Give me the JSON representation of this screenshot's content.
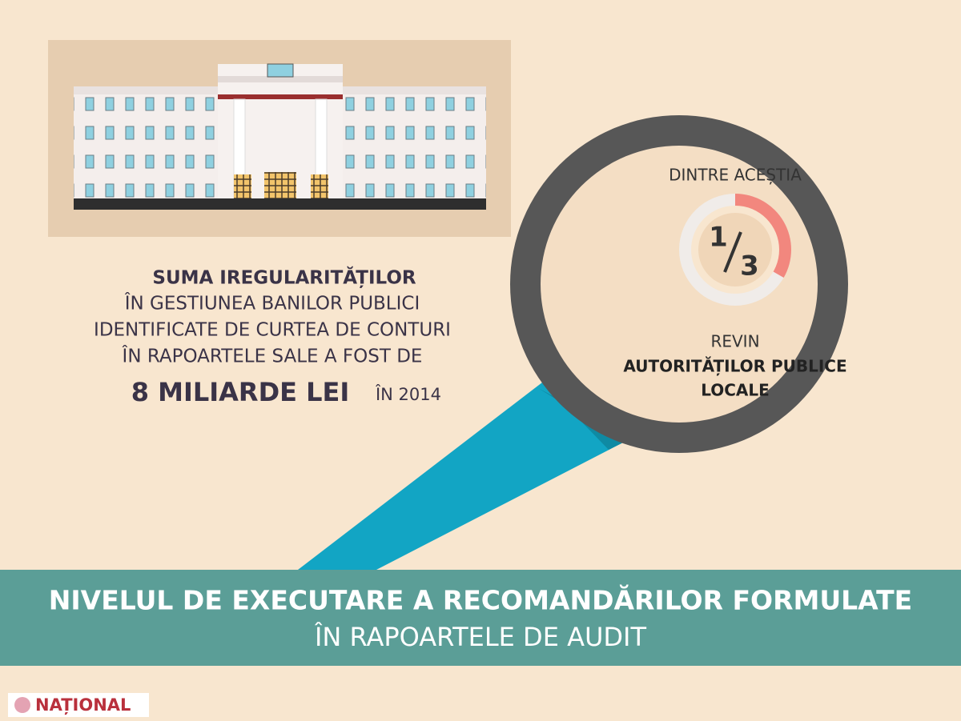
{
  "statement": {
    "line1": "SUMA IREGULARITĂȚILOR",
    "line2": "ÎN GESTIUNEA BANILOR PUBLICI",
    "line3": "IDENTIFICATE DE CURTEA DE CONTURI",
    "line4": "ÎN RAPOARTELE SALE A FOST DE",
    "amount": "8 MILIARDE LEI",
    "year_text": "ÎN 2014"
  },
  "magnifier": {
    "intro": "DINTRE ACEȘTIA",
    "fraction": {
      "numerator": 1,
      "denominator": 3
    },
    "line1": "REVIN",
    "line2": "AUTORITĂȚILOR PUBLICE",
    "line3": "LOCALE"
  },
  "banner": {
    "title": "NIVELUL DE EXECUTARE A RECOMANDĂRILOR FORMULATE",
    "subtitle": "ÎN RAPOARTELE DE AUDIT"
  },
  "logo": "NAȚIONAL"
}
